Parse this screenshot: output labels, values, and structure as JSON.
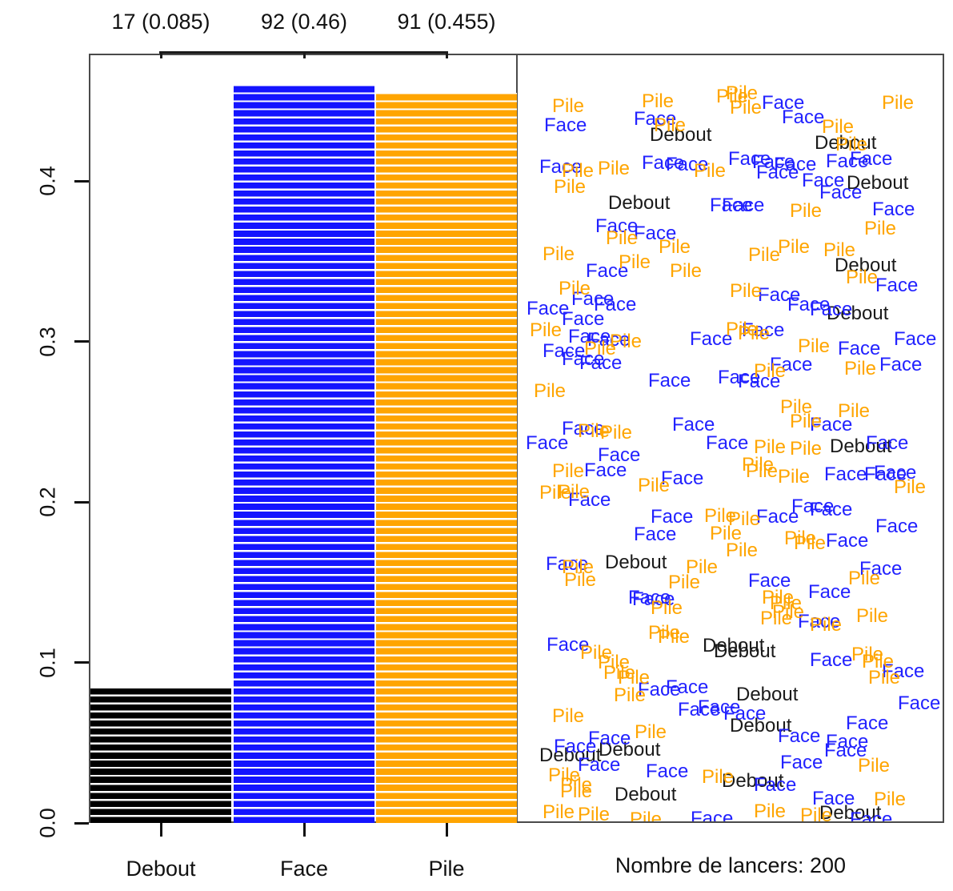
{
  "figure": {
    "caption": "Nombre de lancers: 200"
  },
  "chart_data": {
    "type": "bar",
    "title": "",
    "xlabel": "",
    "ylabel": "",
    "grid": false,
    "legend": "none",
    "categories": [
      "Debout",
      "Face",
      "Pile"
    ],
    "counts": [
      17,
      92,
      91
    ],
    "values": [
      0.085,
      0.46,
      0.455
    ],
    "bar_top_labels": [
      "17 (0.085)",
      "92 (0.46)",
      "91 (0.455)"
    ],
    "bar_colors": [
      "#000000",
      "#1414ff",
      "#ffa500"
    ],
    "ylim": [
      0,
      0.48
    ],
    "yticks": [
      0,
      0.1,
      0.2,
      0.3,
      0.4
    ],
    "ytick_labels": [
      "0.0",
      "0.1",
      "0.2",
      "0.3",
      "0.4"
    ],
    "total_label": "Nombre de lancers: 200",
    "scatter_words": {
      "labels": [
        "Debout",
        "Face",
        "Pile"
      ],
      "colors": [
        "#1a1a1a",
        "#2222ff",
        "#ffa500"
      ],
      "points": [
        [
          0,
          810,
          160
        ],
        [
          0,
          758,
          245
        ],
        [
          0,
          1016,
          170
        ],
        [
          0,
          1056,
          220
        ],
        [
          0,
          1041,
          323
        ],
        [
          0,
          1031,
          383
        ],
        [
          0,
          1035,
          549
        ],
        [
          0,
          754,
          694
        ],
        [
          0,
          876,
          798
        ],
        [
          0,
          890,
          805
        ],
        [
          0,
          672,
          935
        ],
        [
          0,
          746,
          928
        ],
        [
          0,
          766,
          984
        ],
        [
          0,
          918,
          859
        ],
        [
          0,
          910,
          898
        ],
        [
          0,
          900,
          967
        ],
        [
          0,
          1022,
          1007
        ],
        [
          1,
          678,
          148
        ],
        [
          1,
          790,
          140
        ],
        [
          1,
          672,
          200
        ],
        [
          1,
          800,
          195
        ],
        [
          1,
          830,
          197
        ],
        [
          1,
          885,
          248
        ],
        [
          1,
          742,
          274
        ],
        [
          1,
          790,
          283
        ],
        [
          1,
          730,
          330
        ],
        [
          1,
          712,
          365
        ],
        [
          1,
          740,
          372
        ],
        [
          1,
          700,
          390
        ],
        [
          1,
          656,
          377
        ],
        [
          1,
          708,
          412
        ],
        [
          1,
          732,
          416
        ],
        [
          1,
          676,
          430
        ],
        [
          1,
          700,
          440
        ],
        [
          1,
          722,
          445
        ],
        [
          1,
          808,
          467
        ],
        [
          1,
          895,
          463
        ],
        [
          1,
          838,
          522
        ],
        [
          1,
          700,
          527
        ],
        [
          1,
          975,
          138
        ],
        [
          1,
          908,
          190
        ],
        [
          1,
          938,
          194
        ],
        [
          1,
          965,
          197
        ],
        [
          1,
          1030,
          193
        ],
        [
          1,
          1060,
          190
        ],
        [
          1,
          943,
          207
        ],
        [
          1,
          1000,
          217
        ],
        [
          1,
          1022,
          232
        ],
        [
          1,
          900,
          248
        ],
        [
          1,
          1088,
          253
        ],
        [
          1,
          1092,
          348
        ],
        [
          1,
          945,
          360
        ],
        [
          1,
          982,
          372
        ],
        [
          1,
          1010,
          378
        ],
        [
          1,
          925,
          404
        ],
        [
          1,
          1045,
          427
        ],
        [
          1,
          960,
          447
        ],
        [
          1,
          1097,
          447
        ],
        [
          1,
          920,
          468
        ],
        [
          1,
          1010,
          522
        ],
        [
          1,
          655,
          545
        ],
        [
          1,
          880,
          545
        ],
        [
          1,
          728,
          579
        ],
        [
          1,
          824,
          589
        ],
        [
          1,
          708,
          616
        ],
        [
          1,
          811,
          637
        ],
        [
          1,
          790,
          659
        ],
        [
          1,
          680,
          696
        ],
        [
          1,
          783,
          738
        ],
        [
          1,
          788,
          740
        ],
        [
          1,
          681,
          797
        ],
        [
          1,
          795,
          853
        ],
        [
          1,
          830,
          850
        ],
        [
          1,
          845,
          878
        ],
        [
          1,
          870,
          875
        ],
        [
          1,
          733,
          914
        ],
        [
          1,
          690,
          924
        ],
        [
          1,
          720,
          947
        ],
        [
          1,
          861,
          1014
        ],
        [
          1,
          1080,
          545
        ],
        [
          1,
          1028,
          584
        ],
        [
          1,
          1078,
          584
        ],
        [
          1,
          1090,
          582
        ],
        [
          1,
          987,
          624
        ],
        [
          1,
          1010,
          628
        ],
        [
          1,
          943,
          637
        ],
        [
          1,
          1092,
          649
        ],
        [
          1,
          1030,
          667
        ],
        [
          1,
          1072,
          702
        ],
        [
          1,
          933,
          717
        ],
        [
          1,
          1008,
          731
        ],
        [
          1,
          995,
          768
        ],
        [
          1,
          1010,
          816
        ],
        [
          1,
          1100,
          830
        ],
        [
          1,
          902,
          883
        ],
        [
          1,
          1055,
          895
        ],
        [
          1,
          970,
          911
        ],
        [
          1,
          1030,
          918
        ],
        [
          1,
          1028,
          929
        ],
        [
          1,
          973,
          944
        ],
        [
          1,
          940,
          972
        ],
        [
          1,
          1013,
          989
        ],
        [
          1,
          950,
          120
        ],
        [
          1,
          1115,
          415
        ],
        [
          1,
          860,
          415
        ],
        [
          1,
          745,
          560
        ],
        [
          1,
          1120,
          870
        ],
        [
          1,
          805,
          955
        ],
        [
          1,
          1060,
          1015
        ],
        [
          2,
          688,
          124
        ],
        [
          2,
          800,
          118
        ],
        [
          2,
          893,
          112
        ],
        [
          2,
          815,
          148
        ],
        [
          2,
          700,
          205
        ],
        [
          2,
          745,
          202
        ],
        [
          2,
          690,
          225
        ],
        [
          2,
          755,
          289
        ],
        [
          2,
          821,
          300
        ],
        [
          2,
          676,
          309
        ],
        [
          2,
          771,
          319
        ],
        [
          2,
          835,
          330
        ],
        [
          2,
          696,
          352
        ],
        [
          2,
          660,
          404
        ],
        [
          2,
          760,
          418
        ],
        [
          2,
          728,
          427
        ],
        [
          2,
          720,
          530
        ],
        [
          2,
          748,
          532
        ],
        [
          2,
          905,
          108
        ],
        [
          2,
          910,
          126
        ],
        [
          2,
          1025,
          150
        ],
        [
          2,
          1042,
          172
        ],
        [
          2,
          985,
          255
        ],
        [
          2,
          1078,
          277
        ],
        [
          2,
          970,
          300
        ],
        [
          2,
          1027,
          304
        ],
        [
          2,
          933,
          310
        ],
        [
          2,
          1055,
          338
        ],
        [
          2,
          905,
          403
        ],
        [
          2,
          920,
          408
        ],
        [
          2,
          995,
          424
        ],
        [
          2,
          940,
          455
        ],
        [
          2,
          1053,
          452
        ],
        [
          2,
          973,
          500
        ],
        [
          2,
          1045,
          505
        ],
        [
          2,
          985,
          518
        ],
        [
          2,
          688,
          580
        ],
        [
          2,
          795,
          598
        ],
        [
          2,
          695,
          606
        ],
        [
          2,
          672,
          607
        ],
        [
          2,
          878,
          636
        ],
        [
          2,
          885,
          658
        ],
        [
          2,
          700,
          700
        ],
        [
          2,
          703,
          716
        ],
        [
          2,
          833,
          719
        ],
        [
          2,
          811,
          751
        ],
        [
          2,
          808,
          782
        ],
        [
          2,
          820,
          787
        ],
        [
          2,
          723,
          807
        ],
        [
          2,
          745,
          819
        ],
        [
          2,
          752,
          832
        ],
        [
          2,
          770,
          838
        ],
        [
          2,
          765,
          860
        ],
        [
          2,
          688,
          886
        ],
        [
          2,
          791,
          906
        ],
        [
          2,
          875,
          962
        ],
        [
          2,
          683,
          960
        ],
        [
          2,
          698,
          972
        ],
        [
          2,
          698,
          980
        ],
        [
          2,
          676,
          1006
        ],
        [
          2,
          720,
          1009
        ],
        [
          2,
          940,
          550
        ],
        [
          2,
          985,
          552
        ],
        [
          2,
          925,
          572
        ],
        [
          2,
          930,
          580
        ],
        [
          2,
          970,
          587
        ],
        [
          2,
          908,
          640
        ],
        [
          2,
          905,
          679
        ],
        [
          2,
          978,
          664
        ],
        [
          2,
          990,
          670
        ],
        [
          2,
          1058,
          714
        ],
        [
          2,
          950,
          738
        ],
        [
          2,
          960,
          745
        ],
        [
          2,
          963,
          756
        ],
        [
          2,
          1068,
          761
        ],
        [
          2,
          948,
          764
        ],
        [
          2,
          1010,
          772
        ],
        [
          2,
          1062,
          809
        ],
        [
          2,
          1075,
          818
        ],
        [
          2,
          1083,
          838
        ],
        [
          2,
          998,
          1010
        ],
        [
          2,
          1070,
          948
        ],
        [
          2,
          865,
          205
        ],
        [
          2,
          1100,
          120
        ],
        [
          2,
          910,
          355
        ],
        [
          2,
          665,
          480
        ],
        [
          2,
          1115,
          600
        ],
        [
          2,
          855,
          700
        ],
        [
          2,
          1090,
          990
        ],
        [
          2,
          940,
          1005
        ],
        [
          2,
          785,
          1015
        ]
      ]
    }
  }
}
